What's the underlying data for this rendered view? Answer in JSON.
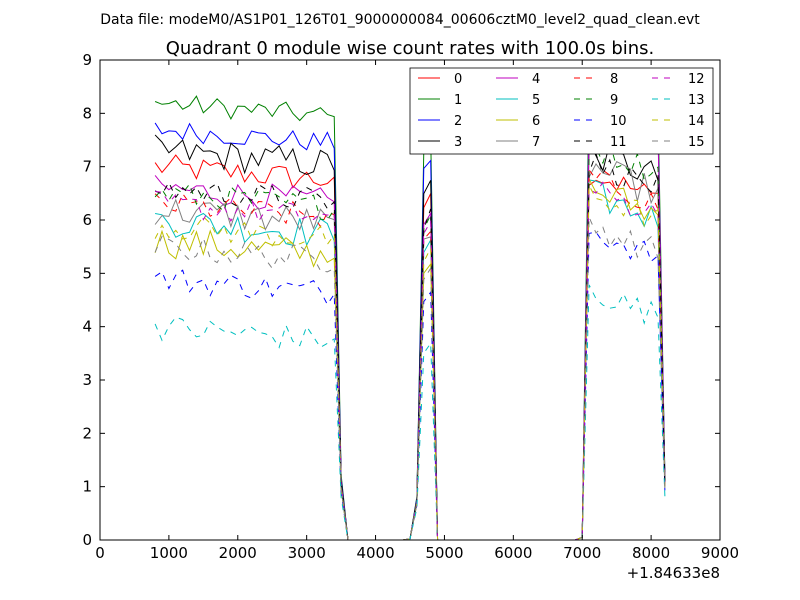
{
  "chart_data": {
    "type": "line",
    "suptitle": "Data file: modeM0/AS1P01_126T01_9000000084_00606cztM0_level2_quad_clean.evt",
    "title": "Quadrant 0 module wise count rates with 100.0s bins.",
    "xlabel": "",
    "ylabel": "",
    "offset_label": "+1.84633e8",
    "xlim": [
      0,
      9000
    ],
    "ylim": [
      0,
      9
    ],
    "xticks": [
      "0",
      "1000",
      "2000",
      "3000",
      "4000",
      "5000",
      "6000",
      "7000",
      "8000",
      "9000"
    ],
    "yticks": [
      "0",
      "1",
      "2",
      "3",
      "4",
      "5",
      "6",
      "7",
      "8",
      "9"
    ],
    "legend_position": "top-right",
    "x": [
      800,
      900,
      1000,
      1100,
      1200,
      1300,
      1400,
      1500,
      1600,
      1700,
      1800,
      1900,
      2000,
      2100,
      2200,
      2300,
      2400,
      2500,
      2600,
      2700,
      2800,
      2900,
      3000,
      3100,
      3200,
      3300,
      3400,
      3500,
      3600,
      3700,
      3800,
      3900,
      4000,
      4100,
      4200,
      4300,
      4400,
      4500,
      4600,
      4700,
      4800,
      4900,
      5000,
      5100,
      5200,
      5300,
      5400,
      5500,
      5600,
      5700,
      5800,
      5900,
      6000,
      6100,
      6200,
      6300,
      6400,
      6500,
      6600,
      6700,
      6800,
      6900,
      7000,
      7100,
      7200,
      7300,
      7400,
      7500,
      7600,
      7700,
      7800,
      7900,
      8000,
      8100,
      8200
    ],
    "series": [
      {
        "name": "0",
        "color": "#ff0000",
        "dash": false,
        "base1": 7.0,
        "base3": 6.9,
        "amp": 0.25
      },
      {
        "name": "1",
        "color": "#008000",
        "dash": false,
        "base1": 8.2,
        "base3": 8.6,
        "amp": 0.2
      },
      {
        "name": "2",
        "color": "#0000ff",
        "dash": false,
        "base1": 7.7,
        "base3": 8.0,
        "amp": 0.2
      },
      {
        "name": "3",
        "color": "#000000",
        "dash": false,
        "base1": 7.3,
        "base3": 7.3,
        "amp": 0.3
      },
      {
        "name": "4",
        "color": "#bf00bf",
        "dash": false,
        "base1": 6.6,
        "base3": 7.9,
        "amp": 0.25
      },
      {
        "name": "5",
        "color": "#00bfbf",
        "dash": false,
        "base1": 6.0,
        "base3": 6.5,
        "amp": 0.3
      },
      {
        "name": "6",
        "color": "#bfbf00",
        "dash": false,
        "base1": 5.6,
        "base3": 6.6,
        "amp": 0.3
      },
      {
        "name": "7",
        "color": "#808080",
        "dash": false,
        "base1": 6.2,
        "base3": 7.0,
        "amp": 0.3
      },
      {
        "name": "8",
        "color": "#ff0000",
        "dash": true,
        "base1": 6.3,
        "base3": 6.8,
        "amp": 0.25
      },
      {
        "name": "9",
        "color": "#008000",
        "dash": true,
        "base1": 6.5,
        "base3": 7.4,
        "amp": 0.25
      },
      {
        "name": "10",
        "color": "#0000ff",
        "dash": true,
        "base1": 4.9,
        "base3": 5.8,
        "amp": 0.25
      },
      {
        "name": "11",
        "color": "#000000",
        "dash": true,
        "base1": 6.6,
        "base3": 7.1,
        "amp": 0.25
      },
      {
        "name": "12",
        "color": "#bf00bf",
        "dash": true,
        "base1": 6.3,
        "base3": 6.6,
        "amp": 0.25
      },
      {
        "name": "13",
        "color": "#00bfbf",
        "dash": true,
        "base1": 4.0,
        "base3": 4.7,
        "amp": 0.25
      },
      {
        "name": "14",
        "color": "#bfbf00",
        "dash": true,
        "base1": 5.9,
        "base3": 6.5,
        "amp": 0.25
      },
      {
        "name": "15",
        "color": "#808080",
        "dash": true,
        "base1": 5.5,
        "base3": 5.9,
        "amp": 0.25
      }
    ]
  }
}
